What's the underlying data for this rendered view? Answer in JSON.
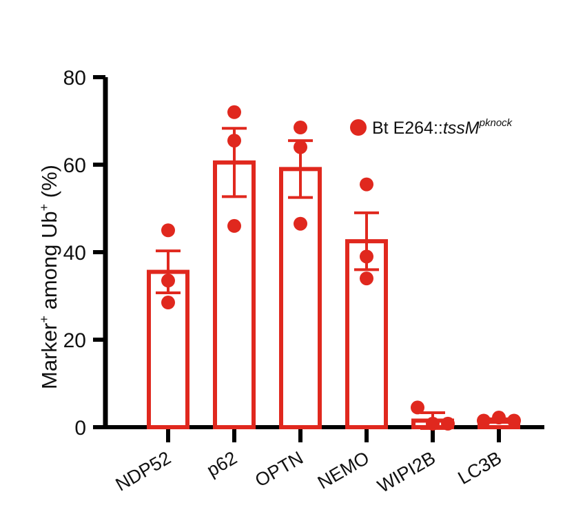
{
  "chart_data": {
    "type": "bar",
    "categories": [
      "NDP52",
      "p62",
      "OPTN",
      "NEMO",
      "WIPI2B",
      "LC3B"
    ],
    "means": [
      35.5,
      60.5,
      59,
      42.5,
      1.5,
      1.5
    ],
    "errors": [
      4.8,
      7.8,
      6.5,
      6.5,
      1.8,
      0.4
    ],
    "points": [
      [
        45,
        33.5,
        28.5
      ],
      [
        72,
        65.5,
        46
      ],
      [
        68.5,
        64,
        46.5
      ],
      [
        55.5,
        39,
        34
      ],
      [
        4.5,
        0.8,
        0.8
      ],
      [
        1.5,
        2.2,
        1.5
      ]
    ],
    "ylim": [
      0,
      80
    ],
    "yticks": [
      0,
      20,
      40,
      60,
      80
    ],
    "ylabel": {
      "part1": "Marker",
      "sup1": "+",
      "part2": " among Ub",
      "sup2": "+",
      "part3": "  (%)"
    },
    "legend": {
      "prefix": "Bt E264::",
      "italic": "tssM",
      "sup": "pknock"
    },
    "color": "#e0281e",
    "legend_position": "top-right",
    "grid": false
  }
}
